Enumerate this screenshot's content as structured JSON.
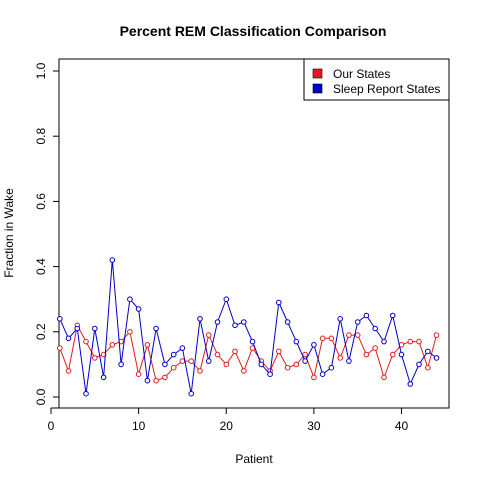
{
  "chart_data": {
    "type": "line",
    "title": "Percent REM Classification Comparison",
    "xlabel": "Patient",
    "ylabel": "Fraction in Wake",
    "xlim": [
      0,
      45
    ],
    "ylim": [
      0,
      1.0
    ],
    "xticks": [
      0,
      10,
      20,
      30,
      40
    ],
    "yticks": [
      0.0,
      0.2,
      0.4,
      0.6,
      0.8,
      1.0
    ],
    "x_tick_labels": [
      "0",
      "10",
      "20",
      "30",
      "40"
    ],
    "y_tick_labels": [
      "0.0",
      "0.2",
      "0.4",
      "0.6",
      "0.8",
      "1.0"
    ],
    "grid": false,
    "legend_position": "top-right",
    "x": [
      1,
      2,
      3,
      4,
      5,
      6,
      7,
      8,
      9,
      10,
      11,
      12,
      13,
      14,
      15,
      16,
      17,
      18,
      19,
      20,
      21,
      22,
      23,
      24,
      25,
      26,
      27,
      28,
      29,
      30,
      31,
      32,
      33,
      34,
      35,
      36,
      37,
      38,
      39,
      40,
      41,
      42,
      43,
      44
    ],
    "series": [
      {
        "name": "Our States",
        "color": "#e41a1c",
        "values": [
          0.15,
          0.08,
          0.22,
          0.17,
          0.12,
          0.13,
          0.16,
          0.17,
          0.2,
          0.07,
          0.16,
          0.05,
          0.06,
          0.09,
          0.11,
          0.11,
          0.08,
          0.19,
          0.13,
          0.1,
          0.14,
          0.08,
          0.15,
          0.11,
          0.08,
          0.14,
          0.09,
          0.1,
          0.13,
          0.06,
          0.18,
          0.18,
          0.12,
          0.19,
          0.19,
          0.13,
          0.15,
          0.06,
          0.13,
          0.16,
          0.17,
          0.17,
          0.09,
          0.19
        ]
      },
      {
        "name": "Sleep Report States",
        "color": "#0000cc",
        "values": [
          0.24,
          0.18,
          0.21,
          0.01,
          0.21,
          0.06,
          0.42,
          0.1,
          0.3,
          0.27,
          0.05,
          0.21,
          0.1,
          0.13,
          0.15,
          0.01,
          0.24,
          0.11,
          0.23,
          0.3,
          0.22,
          0.23,
          0.17,
          0.1,
          0.07,
          0.29,
          0.23,
          0.17,
          0.11,
          0.16,
          0.07,
          0.09,
          0.24,
          0.11,
          0.23,
          0.25,
          0.21,
          0.17,
          0.25,
          0.13,
          0.04,
          0.1,
          0.14,
          0.12
        ]
      }
    ]
  }
}
